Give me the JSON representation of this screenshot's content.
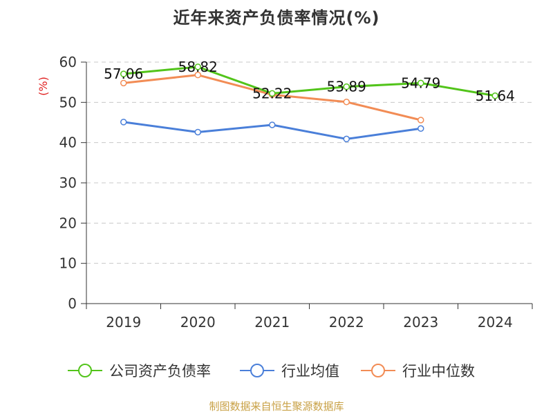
{
  "title": "近年来资产负债率情况(%)",
  "footer": "制图数据来自恒生聚源数据库",
  "chart_data": {
    "type": "line",
    "title": "近年来资产负债率情况(%)",
    "ylabel": "(%)",
    "xlabel": "",
    "categories": [
      "2019",
      "2020",
      "2021",
      "2022",
      "2023",
      "2024"
    ],
    "ylim": [
      0,
      60
    ],
    "yticks": [
      0,
      10,
      20,
      30,
      40,
      50,
      60
    ],
    "grid": true,
    "legend_position": "bottom",
    "series": [
      {
        "name": "公司资产负债率",
        "color": "#52c41a",
        "show_labels": true,
        "values": [
          57.06,
          58.82,
          52.22,
          53.89,
          54.79,
          51.64
        ]
      },
      {
        "name": "行业均值",
        "color": "#4a7fd9",
        "show_labels": false,
        "values": [
          45.1,
          42.6,
          44.4,
          40.9,
          43.5,
          null
        ]
      },
      {
        "name": "行业中位数",
        "color": "#f28c55",
        "show_labels": false,
        "values": [
          54.8,
          56.8,
          51.9,
          50.1,
          45.6,
          null
        ]
      }
    ]
  }
}
